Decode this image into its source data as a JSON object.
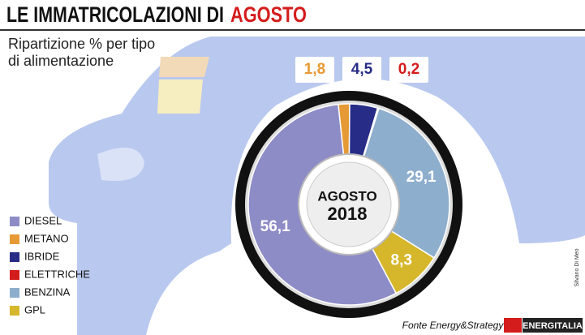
{
  "chart_data": {
    "type": "pie",
    "title": "LE IMMATRICOLAZIONI DI",
    "title_highlight": "AGOSTO",
    "subtitle": [
      "Ripartizione % per tipo",
      "di alimentazione"
    ],
    "center_label": [
      "AGOSTO",
      "2018"
    ],
    "categories": [
      "DIESEL",
      "METANO",
      "IBRIDE",
      "ELETTRICHE",
      "BENZINA",
      "GPL"
    ],
    "values": [
      56.1,
      1.8,
      4.5,
      0.2,
      29.1,
      8.3
    ],
    "value_labels": [
      "56,1",
      "1,8",
      "4,5",
      "0,2",
      "29,1",
      "8,3"
    ],
    "colors": [
      "#8e8cc6",
      "#e69a35",
      "#272c87",
      "#d41c1c",
      "#8eaecd",
      "#d6b62a"
    ],
    "source": "Fonte Energy&Strategy",
    "credit": "Silvano Di Meo",
    "logo": "ENERGITALIA"
  }
}
